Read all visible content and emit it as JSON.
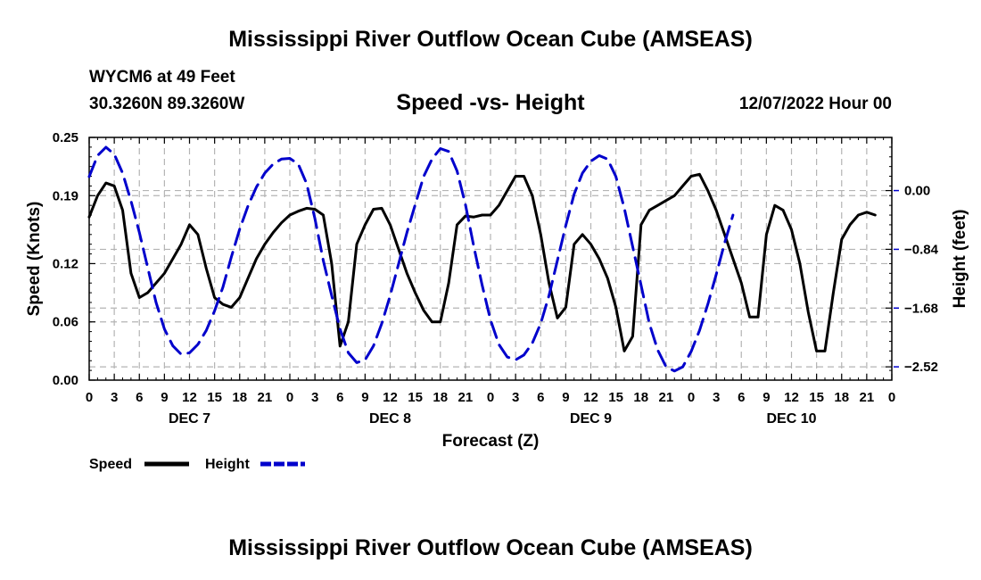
{
  "header": {
    "title": "Mississippi River Outflow Ocean Cube (AMSEAS)",
    "station": "WYCM6 at 49 Feet",
    "coords": "30.3260N  89.3260W",
    "subtitle": "Speed -vs- Height",
    "run_time": "12/07/2022 Hour 00"
  },
  "footer": {
    "title": "Mississippi River Outflow Ocean Cube (AMSEAS)"
  },
  "chart_data": {
    "type": "line",
    "title": "Speed -vs- Height",
    "xlabel": "Forecast (Z)",
    "ylabel_left": "Speed (Knots)",
    "ylabel_right": "Height (feet)",
    "x_range_hours": [
      0,
      96
    ],
    "x_tick_step_hours": 3,
    "x_tick_labels": [
      "0",
      "3",
      "6",
      "9",
      "12",
      "15",
      "18",
      "21",
      "0",
      "3",
      "6",
      "9",
      "12",
      "15",
      "18",
      "21",
      "0",
      "3",
      "6",
      "9",
      "12",
      "15",
      "18",
      "21",
      "0",
      "3",
      "6",
      "9",
      "12",
      "15",
      "18",
      "21",
      "0"
    ],
    "day_labels": [
      {
        "label": "DEC 7",
        "hour": 12
      },
      {
        "label": "DEC 8",
        "hour": 36
      },
      {
        "label": "DEC 9",
        "hour": 60
      },
      {
        "label": "DEC 10",
        "hour": 84
      }
    ],
    "y_left": {
      "range": [
        0,
        0.25
      ],
      "ticks": [
        0.0,
        0.06,
        0.12,
        0.19,
        0.25
      ],
      "tick_labels": [
        "0.00",
        "0.06",
        "0.12",
        "0.19",
        "0.25"
      ]
    },
    "y_right": {
      "range": [
        -2.71,
        0.76
      ],
      "ticks": [
        0.0,
        -0.84,
        -1.68,
        -2.52
      ],
      "tick_labels": [
        "0.00",
        "−0.84",
        "−1.68",
        "−2.52"
      ]
    },
    "grid": true,
    "legend": {
      "placement": "bottom-left",
      "speed_label": "Speed",
      "height_label": "Height"
    },
    "series": [
      {
        "name": "Speed",
        "axis": "left",
        "color": "#000000",
        "dash": "solid",
        "points": [
          [
            0,
            0.168
          ],
          [
            1,
            0.19
          ],
          [
            2,
            0.203
          ],
          [
            3,
            0.2
          ],
          [
            4,
            0.175
          ],
          [
            5,
            0.11
          ],
          [
            6,
            0.085
          ],
          [
            7,
            0.09
          ],
          [
            8,
            0.1
          ],
          [
            9,
            0.11
          ],
          [
            10,
            0.125
          ],
          [
            11,
            0.14
          ],
          [
            12,
            0.16
          ],
          [
            13,
            0.15
          ],
          [
            14,
            0.115
          ],
          [
            15,
            0.085
          ],
          [
            16,
            0.078
          ],
          [
            17,
            0.075
          ],
          [
            18,
            0.085
          ],
          [
            19,
            0.105
          ],
          [
            20,
            0.125
          ],
          [
            21,
            0.14
          ],
          [
            22,
            0.152
          ],
          [
            23,
            0.162
          ],
          [
            24,
            0.17
          ],
          [
            25,
            0.174
          ],
          [
            26,
            0.177
          ],
          [
            27,
            0.176
          ],
          [
            28,
            0.17
          ],
          [
            29,
            0.12
          ],
          [
            30,
            0.035
          ],
          [
            31,
            0.06
          ],
          [
            32,
            0.14
          ],
          [
            33,
            0.16
          ],
          [
            34,
            0.176
          ],
          [
            35,
            0.177
          ],
          [
            36,
            0.16
          ],
          [
            37,
            0.135
          ],
          [
            38,
            0.11
          ],
          [
            39,
            0.09
          ],
          [
            40,
            0.072
          ],
          [
            41,
            0.06
          ],
          [
            42,
            0.06
          ],
          [
            43,
            0.1
          ],
          [
            44,
            0.16
          ],
          [
            45,
            0.169
          ],
          [
            46,
            0.168
          ],
          [
            47,
            0.17
          ],
          [
            48,
            0.17
          ],
          [
            49,
            0.18
          ],
          [
            50,
            0.195
          ],
          [
            51,
            0.21
          ],
          [
            52,
            0.21
          ],
          [
            53,
            0.19
          ],
          [
            54,
            0.15
          ],
          [
            55,
            0.1
          ],
          [
            56,
            0.064
          ],
          [
            57,
            0.075
          ],
          [
            58,
            0.14
          ],
          [
            59,
            0.15
          ],
          [
            60,
            0.14
          ],
          [
            61,
            0.125
          ],
          [
            62,
            0.105
          ],
          [
            63,
            0.075
          ],
          [
            64,
            0.03
          ],
          [
            65,
            0.045
          ],
          [
            66,
            0.16
          ],
          [
            67,
            0.175
          ],
          [
            68,
            0.18
          ],
          [
            69,
            0.185
          ],
          [
            70,
            0.19
          ],
          [
            71,
            0.2
          ],
          [
            72,
            0.21
          ],
          [
            73,
            0.212
          ],
          [
            74,
            0.195
          ],
          [
            75,
            0.175
          ],
          [
            76,
            0.15
          ],
          [
            77,
            0.125
          ],
          [
            78,
            0.1
          ],
          [
            79,
            0.065
          ],
          [
            80,
            0.065
          ],
          [
            81,
            0.15
          ],
          [
            82,
            0.18
          ],
          [
            83,
            0.175
          ],
          [
            84,
            0.155
          ],
          [
            85,
            0.12
          ],
          [
            86,
            0.07
          ],
          [
            87,
            0.03
          ],
          [
            88,
            0.03
          ],
          [
            89,
            0.09
          ],
          [
            90,
            0.145
          ],
          [
            91,
            0.16
          ],
          [
            92,
            0.17
          ],
          [
            93,
            0.173
          ],
          [
            94,
            0.17
          ]
        ]
      },
      {
        "name": "Height",
        "axis": "right",
        "color": "#0000cc",
        "dash": "dashed",
        "points": [
          [
            0,
            0.2
          ],
          [
            1,
            0.5
          ],
          [
            2,
            0.62
          ],
          [
            3,
            0.52
          ],
          [
            4,
            0.25
          ],
          [
            5,
            -0.15
          ],
          [
            6,
            -0.6
          ],
          [
            7,
            -1.1
          ],
          [
            8,
            -1.6
          ],
          [
            9,
            -1.98
          ],
          [
            10,
            -2.22
          ],
          [
            11,
            -2.34
          ],
          [
            12,
            -2.32
          ],
          [
            13,
            -2.2
          ],
          [
            14,
            -2.0
          ],
          [
            15,
            -1.72
          ],
          [
            16,
            -1.38
          ],
          [
            17,
            -0.95
          ],
          [
            18,
            -0.55
          ],
          [
            19,
            -0.22
          ],
          [
            20,
            0.05
          ],
          [
            21,
            0.25
          ],
          [
            22,
            0.38
          ],
          [
            23,
            0.45
          ],
          [
            24,
            0.46
          ],
          [
            25,
            0.38
          ],
          [
            26,
            0.1
          ],
          [
            27,
            -0.4
          ],
          [
            28,
            -1.0
          ],
          [
            29,
            -1.5
          ],
          [
            30,
            -1.98
          ],
          [
            31,
            -2.32
          ],
          [
            32,
            -2.46
          ],
          [
            33,
            -2.42
          ],
          [
            34,
            -2.22
          ],
          [
            35,
            -1.9
          ],
          [
            36,
            -1.5
          ],
          [
            37,
            -1.05
          ],
          [
            38,
            -0.6
          ],
          [
            39,
            -0.2
          ],
          [
            40,
            0.2
          ],
          [
            41,
            0.45
          ],
          [
            42,
            0.6
          ],
          [
            43,
            0.56
          ],
          [
            44,
            0.28
          ],
          [
            45,
            -0.2
          ],
          [
            46,
            -0.8
          ],
          [
            47,
            -1.35
          ],
          [
            48,
            -1.85
          ],
          [
            49,
            -2.2
          ],
          [
            50,
            -2.38
          ],
          [
            51,
            -2.42
          ],
          [
            52,
            -2.35
          ],
          [
            53,
            -2.18
          ],
          [
            54,
            -1.9
          ],
          [
            55,
            -1.5
          ],
          [
            56,
            -1.0
          ],
          [
            57,
            -0.5
          ],
          [
            58,
            -0.05
          ],
          [
            59,
            0.25
          ],
          [
            60,
            0.42
          ],
          [
            61,
            0.5
          ],
          [
            62,
            0.45
          ],
          [
            63,
            0.2
          ],
          [
            64,
            -0.25
          ],
          [
            65,
            -0.8
          ],
          [
            66,
            -1.35
          ],
          [
            67,
            -1.9
          ],
          [
            68,
            -2.28
          ],
          [
            69,
            -2.52
          ],
          [
            70,
            -2.58
          ],
          [
            71,
            -2.52
          ],
          [
            72,
            -2.3
          ],
          [
            73,
            -2.0
          ],
          [
            74,
            -1.62
          ],
          [
            75,
            -1.2
          ],
          [
            76,
            -0.75
          ],
          [
            77,
            -0.35
          ]
        ]
      }
    ]
  }
}
